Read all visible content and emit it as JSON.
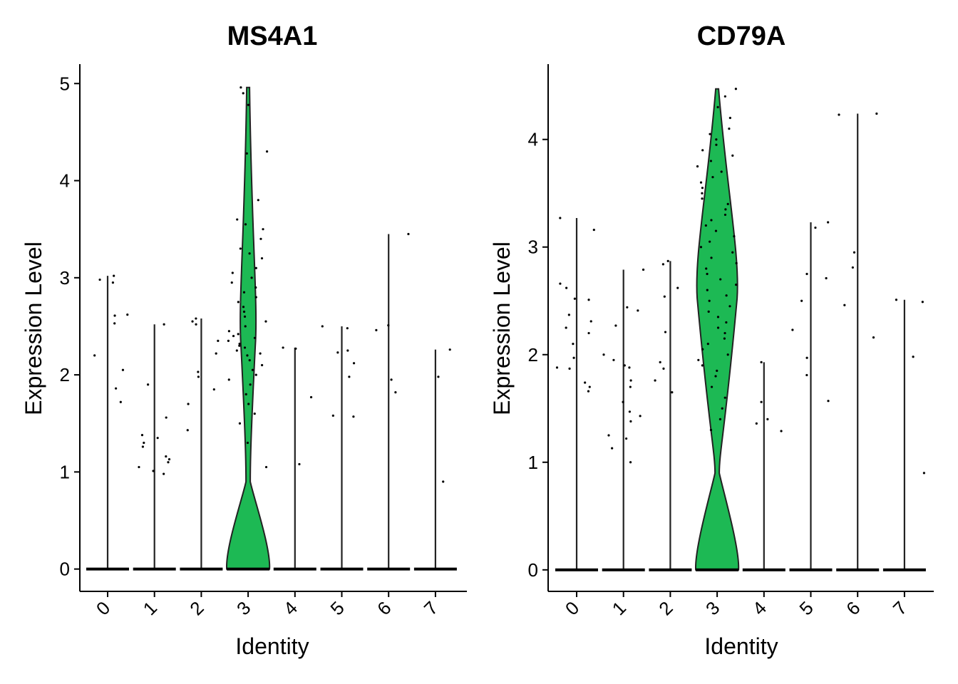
{
  "colors": {
    "fill": "#1db954",
    "outline": "#222222",
    "points": "#000000",
    "axis": "#000000"
  },
  "chart_data": [
    {
      "type": "violin",
      "title": "MS4A1",
      "xlabel": "Identity",
      "ylabel": "Expression Level",
      "categories": [
        "0",
        "1",
        "2",
        "3",
        "4",
        "5",
        "6",
        "7"
      ],
      "ylim": [
        -0.23,
        5.2
      ],
      "yticks": [
        "0",
        "1",
        "2",
        "3",
        "4",
        "5"
      ],
      "x_tick_rotation": "45 degrees",
      "highlighted_category": "3",
      "max_expression": [
        3.02,
        2.52,
        2.58,
        4.96,
        2.28,
        2.5,
        3.45,
        2.26
      ],
      "nonzero_points": [
        [
          3.02,
          2.98,
          2.95,
          2.62,
          2.61,
          2.53,
          2.2,
          2.05,
          1.86,
          1.72
        ],
        [
          2.52,
          1.9,
          1.56,
          1.38,
          1.35,
          1.3,
          1.26,
          1.16,
          1.13,
          1.1,
          1.05,
          1.01,
          0.98
        ],
        [
          2.58,
          2.55,
          2.52,
          2.35,
          2.22,
          2.03,
          1.98,
          1.85,
          1.7,
          1.43
        ],
        [
          4.96,
          4.9,
          4.78,
          4.3,
          4.28,
          3.8,
          3.6,
          3.55,
          3.5,
          3.4,
          3.3,
          3.25,
          3.2,
          3.1,
          3.05,
          3.0,
          2.95,
          2.9,
          2.85,
          2.8,
          2.75,
          2.7,
          2.65,
          2.6,
          2.55,
          2.5,
          2.45,
          2.42,
          2.4,
          2.38,
          2.35,
          2.32,
          2.3,
          2.28,
          2.25,
          2.22,
          2.2,
          2.15,
          2.1,
          2.05,
          2.0,
          1.95,
          1.9,
          1.8,
          1.7,
          1.6,
          1.5,
          1.3,
          1.05
        ],
        [
          2.28,
          2.27,
          1.77,
          1.08
        ],
        [
          2.5,
          2.48,
          2.25,
          2.23,
          2.12,
          1.98,
          1.58,
          1.57
        ],
        [
          3.45,
          2.51,
          2.46,
          1.95,
          1.82
        ],
        [
          2.26,
          1.98,
          0.9
        ]
      ]
    },
    {
      "type": "violin",
      "title": "CD79A",
      "xlabel": "Identity",
      "ylabel": "Expression Level",
      "categories": [
        "0",
        "1",
        "2",
        "3",
        "4",
        "5",
        "6",
        "7"
      ],
      "ylim": [
        -0.2,
        4.7
      ],
      "yticks": [
        "0",
        "1",
        "2",
        "3",
        "4"
      ],
      "x_tick_rotation": "45 degrees",
      "highlighted_category": "3",
      "max_expression": [
        3.27,
        2.79,
        2.87,
        4.47,
        1.93,
        3.23,
        4.24,
        2.51
      ],
      "nonzero_points": [
        [
          3.27,
          3.16,
          2.66,
          2.62,
          2.52,
          2.51,
          2.37,
          2.31,
          2.25,
          2.2,
          2.1,
          1.97,
          1.88,
          1.87,
          1.74,
          1.7,
          1.66
        ],
        [
          2.79,
          2.44,
          2.41,
          2.27,
          2.0,
          1.95,
          1.9,
          1.88,
          1.76,
          1.7,
          1.56,
          1.47,
          1.43,
          1.38,
          1.25,
          1.22,
          1.13,
          1.0
        ],
        [
          2.87,
          2.84,
          2.62,
          2.54,
          2.21,
          1.93,
          1.87,
          1.76,
          1.65
        ],
        [
          4.47,
          4.4,
          4.3,
          4.2,
          4.1,
          4.05,
          4.0,
          3.95,
          3.9,
          3.85,
          3.8,
          3.75,
          3.7,
          3.65,
          3.6,
          3.55,
          3.5,
          3.45,
          3.4,
          3.35,
          3.3,
          3.25,
          3.2,
          3.15,
          3.1,
          3.05,
          3.0,
          2.95,
          2.9,
          2.85,
          2.8,
          2.75,
          2.7,
          2.65,
          2.6,
          2.55,
          2.5,
          2.45,
          2.4,
          2.35,
          2.3,
          2.25,
          2.2,
          2.15,
          2.1,
          2.05,
          2.0,
          1.95,
          1.9,
          1.85,
          1.8,
          1.7,
          1.6,
          1.5,
          1.4,
          1.3
        ],
        [
          1.93,
          1.56,
          1.4,
          1.36,
          1.29
        ],
        [
          3.23,
          3.18,
          2.75,
          2.71,
          2.5,
          2.23,
          1.97,
          1.81,
          1.57
        ],
        [
          4.24,
          4.23,
          2.95,
          2.81,
          2.46,
          2.16
        ],
        [
          2.51,
          2.49,
          1.98,
          0.9
        ]
      ]
    }
  ]
}
